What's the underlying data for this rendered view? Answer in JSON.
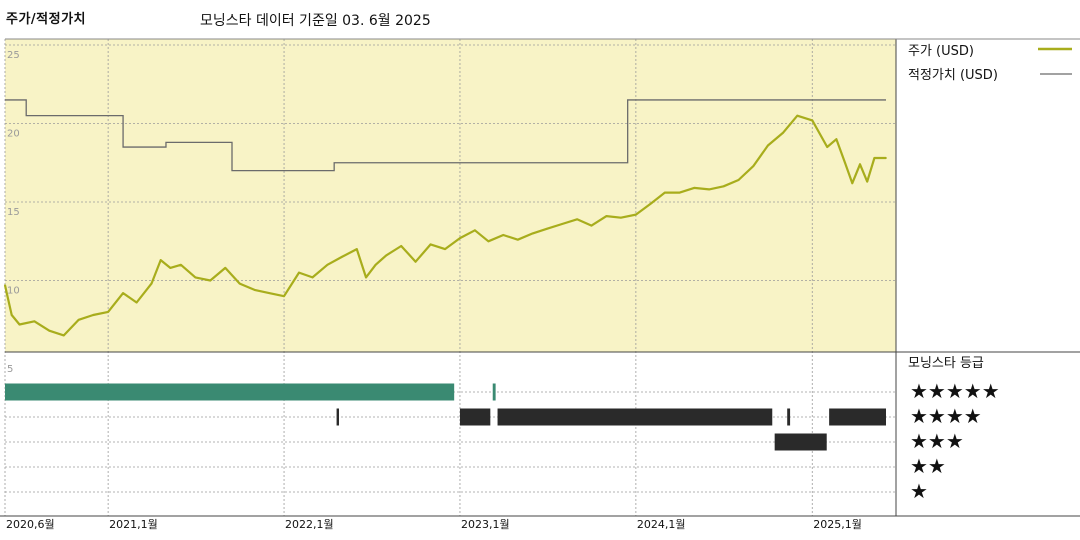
{
  "header": {
    "title": "주가/적정가치",
    "note": "모닝스타 데이터 기준일 03. 6월 2025"
  },
  "legend": {
    "price_label": "주가 (USD)",
    "fair_value_label": "적정가치 (USD)",
    "rating_label": "모닝스타 등급",
    "stars": [
      "★★★★★",
      "★★★★",
      "★★★",
      "★★",
      "★"
    ]
  },
  "colors": {
    "price": "#a8ad1c",
    "fair_value": "#6b6b6b",
    "plot_bg": "#f8f3c6",
    "rating_5": "#3a8a72",
    "rating_other": "#2a2a2a"
  },
  "chart_data": [
    {
      "type": "line",
      "y_ticks": [
        "25",
        "20",
        "15",
        "10",
        "5"
      ],
      "ylim": [
        5,
        25
      ],
      "x_ticks": [
        "2020,6월",
        "2021,1월",
        "2022,1월",
        "2023,1월",
        "2024,1월",
        "2025,1월"
      ],
      "x_tick_dates": [
        "2020-06-01",
        "2021-01-01",
        "2022-01-01",
        "2023-01-01",
        "2024-01-01",
        "2025-01-01"
      ],
      "xlim": [
        "2020-06-01",
        "2025-06-03"
      ],
      "series": [
        {
          "name": "주가 (USD)",
          "points": [
            [
              "2020-06-01",
              9.7
            ],
            [
              "2020-06-15",
              7.8
            ],
            [
              "2020-07-01",
              7.2
            ],
            [
              "2020-08-01",
              7.4
            ],
            [
              "2020-09-01",
              6.8
            ],
            [
              "2020-10-01",
              6.5
            ],
            [
              "2020-11-01",
              7.5
            ],
            [
              "2020-12-01",
              7.8
            ],
            [
              "2021-01-01",
              8.0
            ],
            [
              "2021-02-01",
              9.2
            ],
            [
              "2021-03-01",
              8.6
            ],
            [
              "2021-04-01",
              9.8
            ],
            [
              "2021-04-20",
              11.3
            ],
            [
              "2021-05-10",
              10.8
            ],
            [
              "2021-06-01",
              11.0
            ],
            [
              "2021-07-01",
              10.2
            ],
            [
              "2021-08-01",
              10.0
            ],
            [
              "2021-09-01",
              10.8
            ],
            [
              "2021-10-01",
              9.8
            ],
            [
              "2021-11-01",
              9.4
            ],
            [
              "2021-12-01",
              9.2
            ],
            [
              "2022-01-01",
              9.0
            ],
            [
              "2022-02-01",
              10.5
            ],
            [
              "2022-03-01",
              10.2
            ],
            [
              "2022-04-01",
              11.0
            ],
            [
              "2022-05-01",
              11.5
            ],
            [
              "2022-06-01",
              12.0
            ],
            [
              "2022-06-20",
              10.2
            ],
            [
              "2022-07-10",
              11.0
            ],
            [
              "2022-08-01",
              11.6
            ],
            [
              "2022-09-01",
              12.2
            ],
            [
              "2022-10-01",
              11.2
            ],
            [
              "2022-11-01",
              12.3
            ],
            [
              "2022-12-01",
              12.0
            ],
            [
              "2023-01-01",
              12.7
            ],
            [
              "2023-02-01",
              13.2
            ],
            [
              "2023-03-01",
              12.5
            ],
            [
              "2023-04-01",
              12.9
            ],
            [
              "2023-05-01",
              12.6
            ],
            [
              "2023-06-01",
              13.0
            ],
            [
              "2023-07-01",
              13.3
            ],
            [
              "2023-08-01",
              13.6
            ],
            [
              "2023-09-01",
              13.9
            ],
            [
              "2023-10-01",
              13.5
            ],
            [
              "2023-11-01",
              14.1
            ],
            [
              "2023-12-01",
              14.0
            ],
            [
              "2024-01-01",
              14.2
            ],
            [
              "2024-02-01",
              14.9
            ],
            [
              "2024-03-01",
              15.6
            ],
            [
              "2024-04-01",
              15.6
            ],
            [
              "2024-05-01",
              15.9
            ],
            [
              "2024-06-01",
              15.8
            ],
            [
              "2024-07-01",
              16.0
            ],
            [
              "2024-08-01",
              16.4
            ],
            [
              "2024-09-01",
              17.3
            ],
            [
              "2024-10-01",
              18.6
            ],
            [
              "2024-11-01",
              19.4
            ],
            [
              "2024-12-01",
              20.5
            ],
            [
              "2025-01-01",
              20.2
            ],
            [
              "2025-02-01",
              18.5
            ],
            [
              "2025-02-20",
              19.0
            ],
            [
              "2025-03-10",
              17.5
            ],
            [
              "2025-03-25",
              16.2
            ],
            [
              "2025-04-10",
              17.4
            ],
            [
              "2025-04-25",
              16.3
            ],
            [
              "2025-05-10",
              17.8
            ],
            [
              "2025-06-03",
              17.8
            ]
          ]
        },
        {
          "name": "적정가치 (USD)",
          "step": true,
          "points": [
            [
              "2020-06-01",
              21.5
            ],
            [
              "2020-07-15",
              20.5
            ],
            [
              "2021-02-01",
              18.5
            ],
            [
              "2021-05-01",
              18.8
            ],
            [
              "2021-09-15",
              17.0
            ],
            [
              "2022-04-15",
              17.5
            ],
            [
              "2023-12-15",
              17.5
            ],
            [
              "2023-12-15",
              21.5
            ],
            [
              "2025-06-03",
              21.5
            ]
          ]
        }
      ]
    },
    {
      "type": "rating_strip",
      "rows": [
        "★★★★★",
        "★★★★",
        "★★★",
        "★★",
        "★"
      ],
      "ranges": [
        {
          "stars": 5,
          "start": "2020-06-01",
          "end": "2022-12-20"
        },
        {
          "stars": 5,
          "start": "2023-03-10",
          "end": "2023-03-16"
        },
        {
          "stars": 4,
          "start": "2022-04-20",
          "end": "2022-04-25"
        },
        {
          "stars": 4,
          "start": "2023-01-01",
          "end": "2023-03-05"
        },
        {
          "stars": 4,
          "start": "2023-03-20",
          "end": "2024-10-10"
        },
        {
          "stars": 4,
          "start": "2024-11-10",
          "end": "2024-11-16"
        },
        {
          "stars": 4,
          "start": "2025-02-05",
          "end": "2025-06-03"
        },
        {
          "stars": 3,
          "start": "2024-10-15",
          "end": "2025-01-31"
        }
      ]
    }
  ]
}
